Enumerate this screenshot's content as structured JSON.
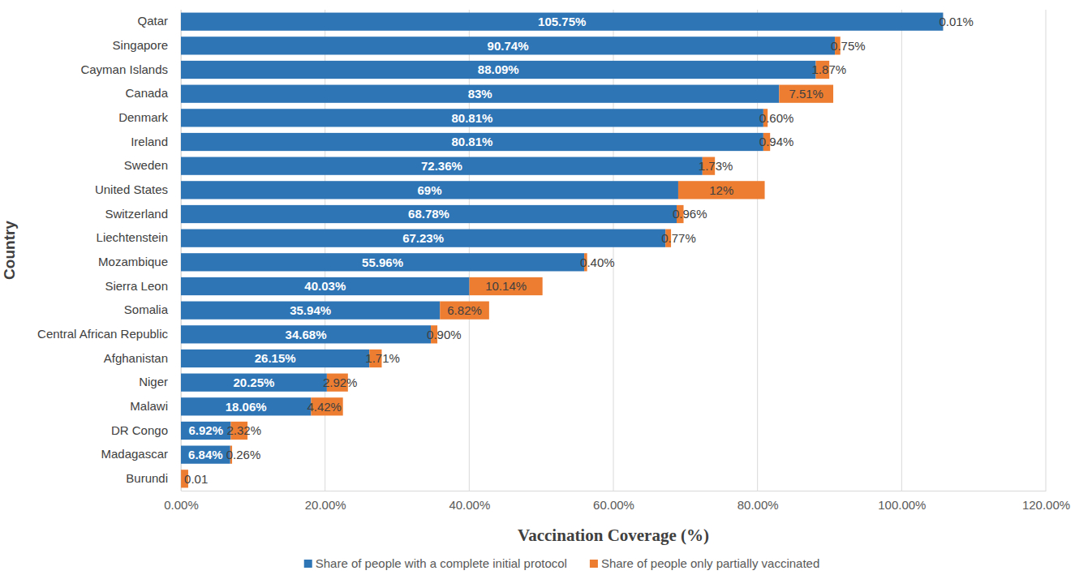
{
  "chart_data": {
    "type": "bar",
    "orientation": "horizontal",
    "stacked": true,
    "data_labels": true,
    "grid": true,
    "legend": "bottom",
    "xlabel": "Vaccination Coverage (%)",
    "ylabel": "Country",
    "categories": [
      "Qatar",
      "Singapore",
      "Cayman Islands",
      "Canada",
      "Denmark",
      "Ireland",
      "Sweden",
      "United States",
      "Switzerland",
      "Liechtenstein",
      "Mozambique",
      "Sierra Leon",
      "Somalia",
      "Central African Republic",
      "Afghanistan",
      "Niger",
      "Malawi",
      "DR Congo",
      "Madagascar",
      "Burundi"
    ],
    "series": [
      {
        "name": "Share of people with a complete initial protocol",
        "color": "#2e75b6",
        "values": [
          105.75,
          90.74,
          88.09,
          83,
          80.81,
          80.81,
          72.36,
          69,
          68.78,
          67.23,
          55.96,
          40.03,
          35.94,
          34.68,
          26.15,
          20.25,
          18.06,
          6.92,
          6.84,
          0.01
        ],
        "value_labels": [
          "105.75%",
          "90.74%",
          "88.09%",
          "83%",
          "80.81%",
          "80.81%",
          "72.36%",
          "69%",
          "68.78%",
          "67.23%",
          "55.96%",
          "40.03%",
          "35.94%",
          "34.68%",
          "26.15%",
          "20.25%",
          "18.06%",
          "6.92%",
          "6.84%",
          "0.01"
        ]
      },
      {
        "name": "Share of people only partially vaccinated",
        "color": "#ed7d31",
        "values": [
          0.01,
          0.75,
          1.87,
          7.51,
          0.6,
          0.94,
          1.73,
          12,
          0.96,
          0.77,
          0.4,
          10.14,
          6.82,
          0.9,
          1.71,
          2.92,
          4.42,
          2.32,
          0.26,
          1.0
        ],
        "value_labels": [
          "0.01%",
          "0.75%",
          "1.87%",
          "7.51%",
          "0.60%",
          "0.94%",
          "1.73%",
          "12%",
          "0.96%",
          "0.77%",
          "0.40%",
          "10.14%",
          "6.82%",
          "0.90%",
          "1.71%",
          "2.92%",
          "4.42%",
          "2.32%",
          "0.26%",
          null
        ]
      }
    ],
    "xlim": [
      0,
      120
    ],
    "xticks": [
      {
        "value": 0,
        "label": "0.00%"
      },
      {
        "value": 20,
        "label": "20.00%"
      },
      {
        "value": 40,
        "label": "40.00%"
      },
      {
        "value": 60,
        "label": "60.00%"
      },
      {
        "value": 80,
        "label": "80.00%"
      },
      {
        "value": 100,
        "label": "100.00%"
      },
      {
        "value": 120,
        "label": "120.00%"
      }
    ]
  }
}
